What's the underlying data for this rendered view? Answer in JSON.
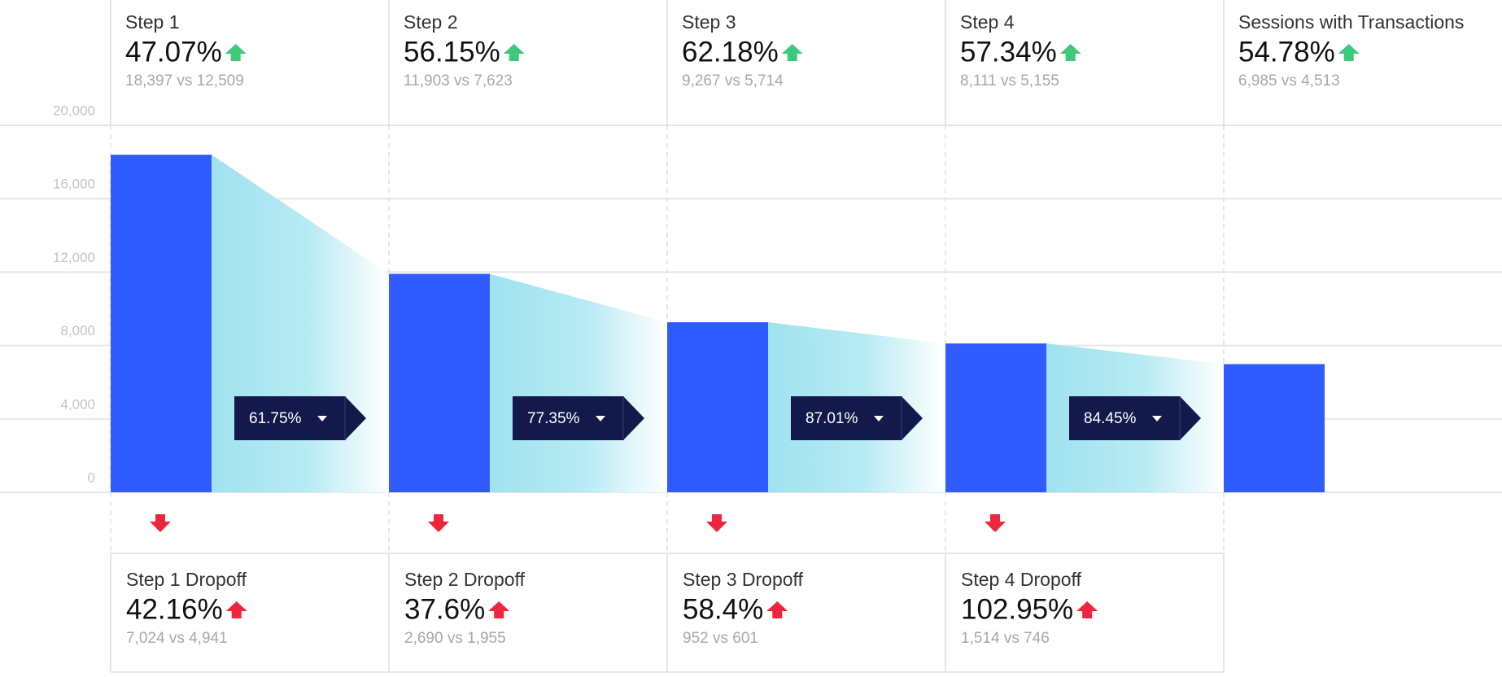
{
  "chart_data": {
    "type": "funnel",
    "categories": [
      "Step 1",
      "Step 2",
      "Step 3",
      "Step 4",
      "Sessions with Transactions"
    ],
    "values": [
      18397,
      11903,
      9267,
      8111,
      6985
    ],
    "color": "#2f5bff",
    "ylim": [
      0,
      20000
    ],
    "yticks": [
      0,
      {
        "value": 4000,
        "label": "4,000"
      },
      {
        "value": 8000,
        "label": "8,000"
      },
      {
        "value": 12000,
        "label": "12,000"
      },
      {
        "value": 16000,
        "label": "16,000"
      },
      {
        "value": 20000,
        "label": "20,000"
      }
    ],
    "grid": true,
    "conversion_labels": [
      "61.75%",
      "77.35%",
      "87.01%",
      "84.45%"
    ]
  },
  "steps": [
    {
      "rate": "47.07%",
      "compare": "18,397 vs 12,509"
    },
    {
      "rate": "56.15%",
      "compare": "11,903 vs 7,623"
    },
    {
      "rate": "62.18%",
      "compare": "9,267 vs 5,714"
    },
    {
      "rate": "57.34%",
      "compare": "8,111 vs 5,155"
    },
    {
      "rate": "54.78%",
      "compare": "6,985 vs 4,513"
    }
  ],
  "dropoffs": [
    {
      "name": "Step 1 Dropoff",
      "rate": "42.16%",
      "compare": "7,024 vs 4,941"
    },
    {
      "name": "Step 2 Dropoff",
      "rate": "37.6%",
      "compare": "2,690 vs 1,955"
    },
    {
      "name": "Step 3 Dropoff",
      "rate": "58.4%",
      "compare": "952 vs 601"
    },
    {
      "name": "Step 4 Dropoff",
      "rate": "102.95%",
      "compare": "1,514 vs 746"
    }
  ]
}
